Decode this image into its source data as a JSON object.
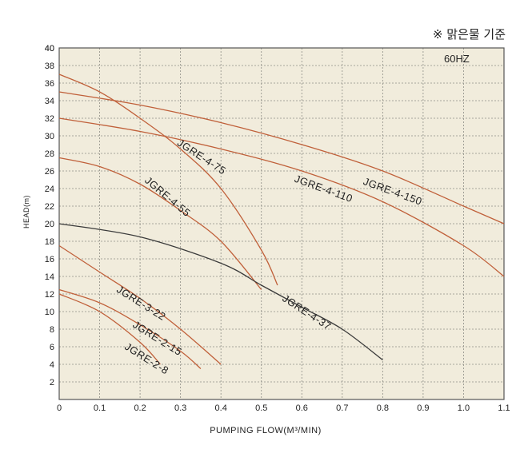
{
  "note": "※ 맑은물 기준",
  "chart_data": {
    "type": "line",
    "frequency_label": "60HZ",
    "xlabel": "PUMPING FLOW(M³/MIN)",
    "ylabel": "HEAD(m)",
    "xlim": [
      0,
      1.1
    ],
    "ylim": [
      0,
      40
    ],
    "x_ticks": [
      0,
      0.1,
      0.2,
      0.3,
      0.4,
      0.5,
      0.6,
      0.7,
      0.8,
      0.9,
      1.0,
      1.1
    ],
    "x_tick_labels": [
      "0",
      "0.1",
      "0.2",
      "0.3",
      "0.4",
      "0.5",
      "0.6",
      "0.7",
      "0.8",
      "0.9",
      "1.0",
      "1.1"
    ],
    "y_ticks": [
      2,
      4,
      6,
      8,
      10,
      12,
      14,
      16,
      18,
      20,
      22,
      24,
      26,
      28,
      30,
      32,
      34,
      36,
      38,
      40
    ],
    "grid": true,
    "series": [
      {
        "name": "JGRE-4-150",
        "color": "#c0603a",
        "x": [
          0,
          0.2,
          0.4,
          0.6,
          0.8,
          1.0,
          1.1
        ],
        "y": [
          35,
          33.5,
          31.5,
          29,
          26,
          22,
          20
        ]
      },
      {
        "name": "JGRE-4-110",
        "color": "#c0603a",
        "x": [
          0,
          0.2,
          0.4,
          0.6,
          0.8,
          1.0,
          1.1
        ],
        "y": [
          32,
          30.5,
          28.5,
          26,
          22.5,
          17.5,
          14
        ]
      },
      {
        "name": "JGRE-4-75",
        "color": "#c0603a",
        "x": [
          0,
          0.1,
          0.2,
          0.3,
          0.4,
          0.5,
          0.54
        ],
        "y": [
          37,
          35,
          32,
          28.5,
          24,
          17,
          13
        ]
      },
      {
        "name": "JGRE-4-55",
        "color": "#c0603a",
        "x": [
          0,
          0.1,
          0.2,
          0.3,
          0.4,
          0.5
        ],
        "y": [
          27.5,
          26.5,
          24.5,
          21.5,
          18,
          12.5
        ]
      },
      {
        "name": "JGRE-4-37",
        "color": "#3a3a3a",
        "x": [
          0,
          0.2,
          0.4,
          0.5,
          0.6,
          0.7,
          0.8
        ],
        "y": [
          20,
          18.5,
          15.5,
          13,
          10.5,
          8,
          4.5
        ]
      },
      {
        "name": "JGRE-3-22",
        "color": "#c0603a",
        "x": [
          0,
          0.1,
          0.2,
          0.3,
          0.4
        ],
        "y": [
          17.5,
          14.5,
          11.5,
          8,
          4
        ]
      },
      {
        "name": "JGRE-2-15",
        "color": "#c0603a",
        "x": [
          0,
          0.1,
          0.2,
          0.3,
          0.35
        ],
        "y": [
          12.5,
          11,
          8.5,
          5.5,
          3.5
        ]
      },
      {
        "name": "JGRE-2-8",
        "color": "#c0603a",
        "x": [
          0,
          0.1,
          0.2,
          0.25
        ],
        "y": [
          12,
          10,
          6.5,
          4
        ]
      }
    ]
  }
}
